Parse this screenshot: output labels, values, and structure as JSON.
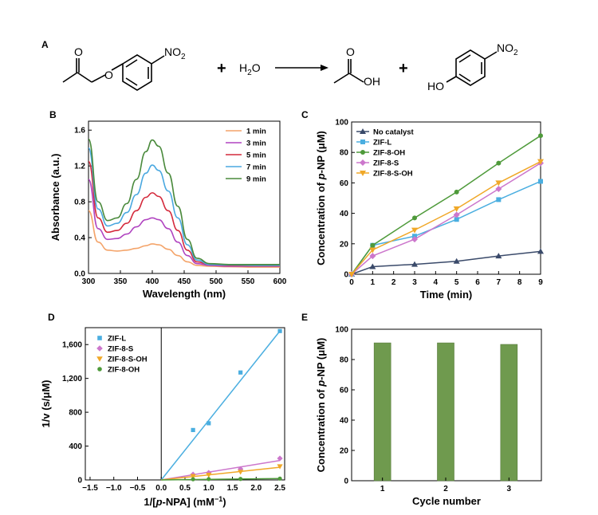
{
  "reaction": {
    "label": "A",
    "substituent_no2": "NO",
    "substituent_no2_sub": "2",
    "plus": "+",
    "water_h": "H",
    "water_sub": "2",
    "water_o": "O",
    "acid_o": "O",
    "acid_oh": "OH",
    "phenol_ho": "HO"
  },
  "colors": {
    "1min": "#f4a46a",
    "3min": "#b044c0",
    "5min": "#d42a3c",
    "7min": "#4aa8e0",
    "9min": "#4a8a3c",
    "nocat": "#3a4a6a",
    "zifl": "#4aaee0",
    "zif8oh": "#4e9a3a",
    "zif8s": "#cc77cc",
    "zif8soh": "#f0a828",
    "bar": "#6f9a4e"
  },
  "chart_data": [
    {
      "panel": "B",
      "type": "line",
      "xlabel": "Wavelength (nm)",
      "ylabel": "Absorbance (a.u.)",
      "xlim": [
        300,
        600
      ],
      "ylim": [
        0,
        1.7
      ],
      "xticks": [
        "300",
        "350",
        "400",
        "450",
        "500",
        "550",
        "600"
      ],
      "yticks": [
        "0.0",
        "0.4",
        "0.8",
        "1.2",
        "1.6"
      ],
      "legend": "top-right",
      "series": [
        {
          "name": "1 min",
          "color": "#f4a46a",
          "x": [
            300,
            315,
            330,
            345,
            360,
            375,
            390,
            400,
            410,
            425,
            440,
            455,
            470,
            490,
            520,
            560,
            600
          ],
          "y": [
            0.7,
            0.35,
            0.26,
            0.25,
            0.26,
            0.28,
            0.31,
            0.33,
            0.32,
            0.27,
            0.2,
            0.13,
            0.09,
            0.08,
            0.075,
            0.07,
            0.07
          ]
        },
        {
          "name": "3 min",
          "color": "#b044c0",
          "x": [
            300,
            315,
            330,
            345,
            360,
            375,
            390,
            400,
            410,
            425,
            440,
            455,
            470,
            490,
            520,
            560,
            600
          ],
          "y": [
            1.05,
            0.5,
            0.38,
            0.39,
            0.44,
            0.52,
            0.6,
            0.62,
            0.6,
            0.5,
            0.35,
            0.2,
            0.11,
            0.09,
            0.08,
            0.08,
            0.08
          ]
        },
        {
          "name": "5 min",
          "color": "#d42a3c",
          "x": [
            300,
            315,
            330,
            345,
            360,
            375,
            390,
            400,
            410,
            425,
            440,
            455,
            470,
            490,
            520,
            560,
            600
          ],
          "y": [
            1.25,
            0.62,
            0.46,
            0.48,
            0.56,
            0.7,
            0.85,
            0.9,
            0.86,
            0.7,
            0.48,
            0.26,
            0.13,
            0.1,
            0.09,
            0.085,
            0.085
          ]
        },
        {
          "name": "7 min",
          "color": "#4aa8e0",
          "x": [
            300,
            315,
            330,
            345,
            360,
            375,
            390,
            400,
            410,
            425,
            440,
            455,
            470,
            490,
            520,
            560,
            600
          ],
          "y": [
            1.4,
            0.72,
            0.53,
            0.56,
            0.68,
            0.88,
            1.12,
            1.21,
            1.15,
            0.92,
            0.62,
            0.32,
            0.15,
            0.1,
            0.095,
            0.09,
            0.09
          ]
        },
        {
          "name": "9 min",
          "color": "#4a8a3c",
          "x": [
            300,
            315,
            330,
            345,
            360,
            375,
            390,
            400,
            410,
            425,
            440,
            455,
            470,
            490,
            520,
            560,
            600
          ],
          "y": [
            1.5,
            0.8,
            0.59,
            0.62,
            0.78,
            1.05,
            1.36,
            1.49,
            1.42,
            1.12,
            0.75,
            0.38,
            0.17,
            0.11,
            0.1,
            0.1,
            0.1
          ]
        }
      ]
    },
    {
      "panel": "C",
      "type": "line",
      "xlabel": "Time (min)",
      "ylabel_pre": "Concentration of ",
      "ylabel_it": "p",
      "ylabel_post": "-NP (μM)",
      "xlim": [
        0,
        9
      ],
      "ylim": [
        0,
        100
      ],
      "xticks": [
        "0",
        "1",
        "2",
        "3",
        "4",
        "5",
        "6",
        "7",
        "8",
        "9"
      ],
      "yticks": [
        "0",
        "20",
        "40",
        "60",
        "80",
        "100"
      ],
      "legend": "top-left",
      "series": [
        {
          "name": "No catalyst",
          "color": "#3a4a6a",
          "marker": "triangle",
          "x": [
            0,
            1,
            3,
            5,
            7,
            9
          ],
          "y": [
            0,
            5,
            6.5,
            8.5,
            12,
            15
          ]
        },
        {
          "name": "ZIF-L",
          "color": "#4aaee0",
          "marker": "square",
          "x": [
            0,
            1,
            3,
            5,
            7,
            9
          ],
          "y": [
            0,
            19,
            25,
            36,
            49,
            61
          ]
        },
        {
          "name": "ZIF-8-OH",
          "color": "#4e9a3a",
          "marker": "circle",
          "x": [
            0,
            1,
            3,
            5,
            7,
            9
          ],
          "y": [
            0,
            19,
            37,
            54,
            73,
            91
          ]
        },
        {
          "name": "ZIF-8-S",
          "color": "#cc77cc",
          "marker": "diamond",
          "x": [
            0,
            1,
            3,
            5,
            7,
            9
          ],
          "y": [
            0,
            12,
            23,
            39,
            56,
            73
          ]
        },
        {
          "name": "ZIF-8-S-OH",
          "color": "#f0a828",
          "marker": "triangle-down",
          "x": [
            0,
            1,
            3,
            5,
            7,
            9
          ],
          "y": [
            0,
            16,
            29,
            43,
            60,
            74
          ]
        }
      ]
    },
    {
      "panel": "D",
      "type": "scatter",
      "xlabel_pre": "1/[",
      "xlabel_it": "p",
      "xlabel_post": "-NPA] (mM",
      "xlabel_sup": "−1",
      "xlabel_end": ")",
      "ylabel": "1/v (s/μM)",
      "xlim": [
        -1.6,
        2.6
      ],
      "ylim": [
        0,
        1800
      ],
      "xticks": [
        "−1.5",
        "−1.0",
        "−0.5",
        "0.0",
        "0.5",
        "1.0",
        "1.5",
        "2.0",
        "2.5"
      ],
      "yticks": [
        "0",
        "400",
        "800",
        "1,200",
        "1,600"
      ],
      "legend": "top-left",
      "series": [
        {
          "name": "ZIF-L",
          "color": "#4aaee0",
          "marker": "square",
          "x": [
            0.67,
            1.0,
            1.67,
            2.5
          ],
          "y": [
            590,
            670,
            1270,
            1760
          ],
          "fit": [
            [
              0,
              0
            ],
            [
              2.5,
              1760
            ]
          ]
        },
        {
          "name": "ZIF-8-S",
          "color": "#cc77cc",
          "marker": "diamond",
          "x": [
            0.67,
            1.0,
            1.67,
            2.5
          ],
          "y": [
            65,
            85,
            130,
            255
          ],
          "fit": [
            [
              0,
              0
            ],
            [
              2.5,
              230
            ]
          ]
        },
        {
          "name": "ZIF-8-S-OH",
          "color": "#f0a828",
          "marker": "triangle-down",
          "x": [
            0.67,
            1.0,
            1.67,
            2.5
          ],
          "y": [
            45,
            60,
            95,
            160
          ],
          "fit": [
            [
              0,
              0
            ],
            [
              2.5,
              150
            ]
          ]
        },
        {
          "name": "ZIF-8-OH",
          "color": "#4e9a3a",
          "marker": "circle",
          "x": [
            0.67,
            1.0,
            1.67,
            2.5
          ],
          "y": [
            8,
            10,
            12,
            16
          ],
          "fit": [
            [
              0,
              0
            ],
            [
              2.5,
              16
            ]
          ]
        }
      ]
    },
    {
      "panel": "E",
      "type": "bar",
      "xlabel": "Cycle number",
      "ylabel_pre": "Concentration of ",
      "ylabel_it": "p",
      "ylabel_post": "-NP (μM)",
      "categories": [
        "1",
        "2",
        "3"
      ],
      "values": [
        91,
        91,
        90
      ],
      "ylim": [
        0,
        100
      ],
      "yticks": [
        "0",
        "20",
        "40",
        "60",
        "80",
        "100"
      ],
      "color": "#6f9a4e"
    }
  ]
}
